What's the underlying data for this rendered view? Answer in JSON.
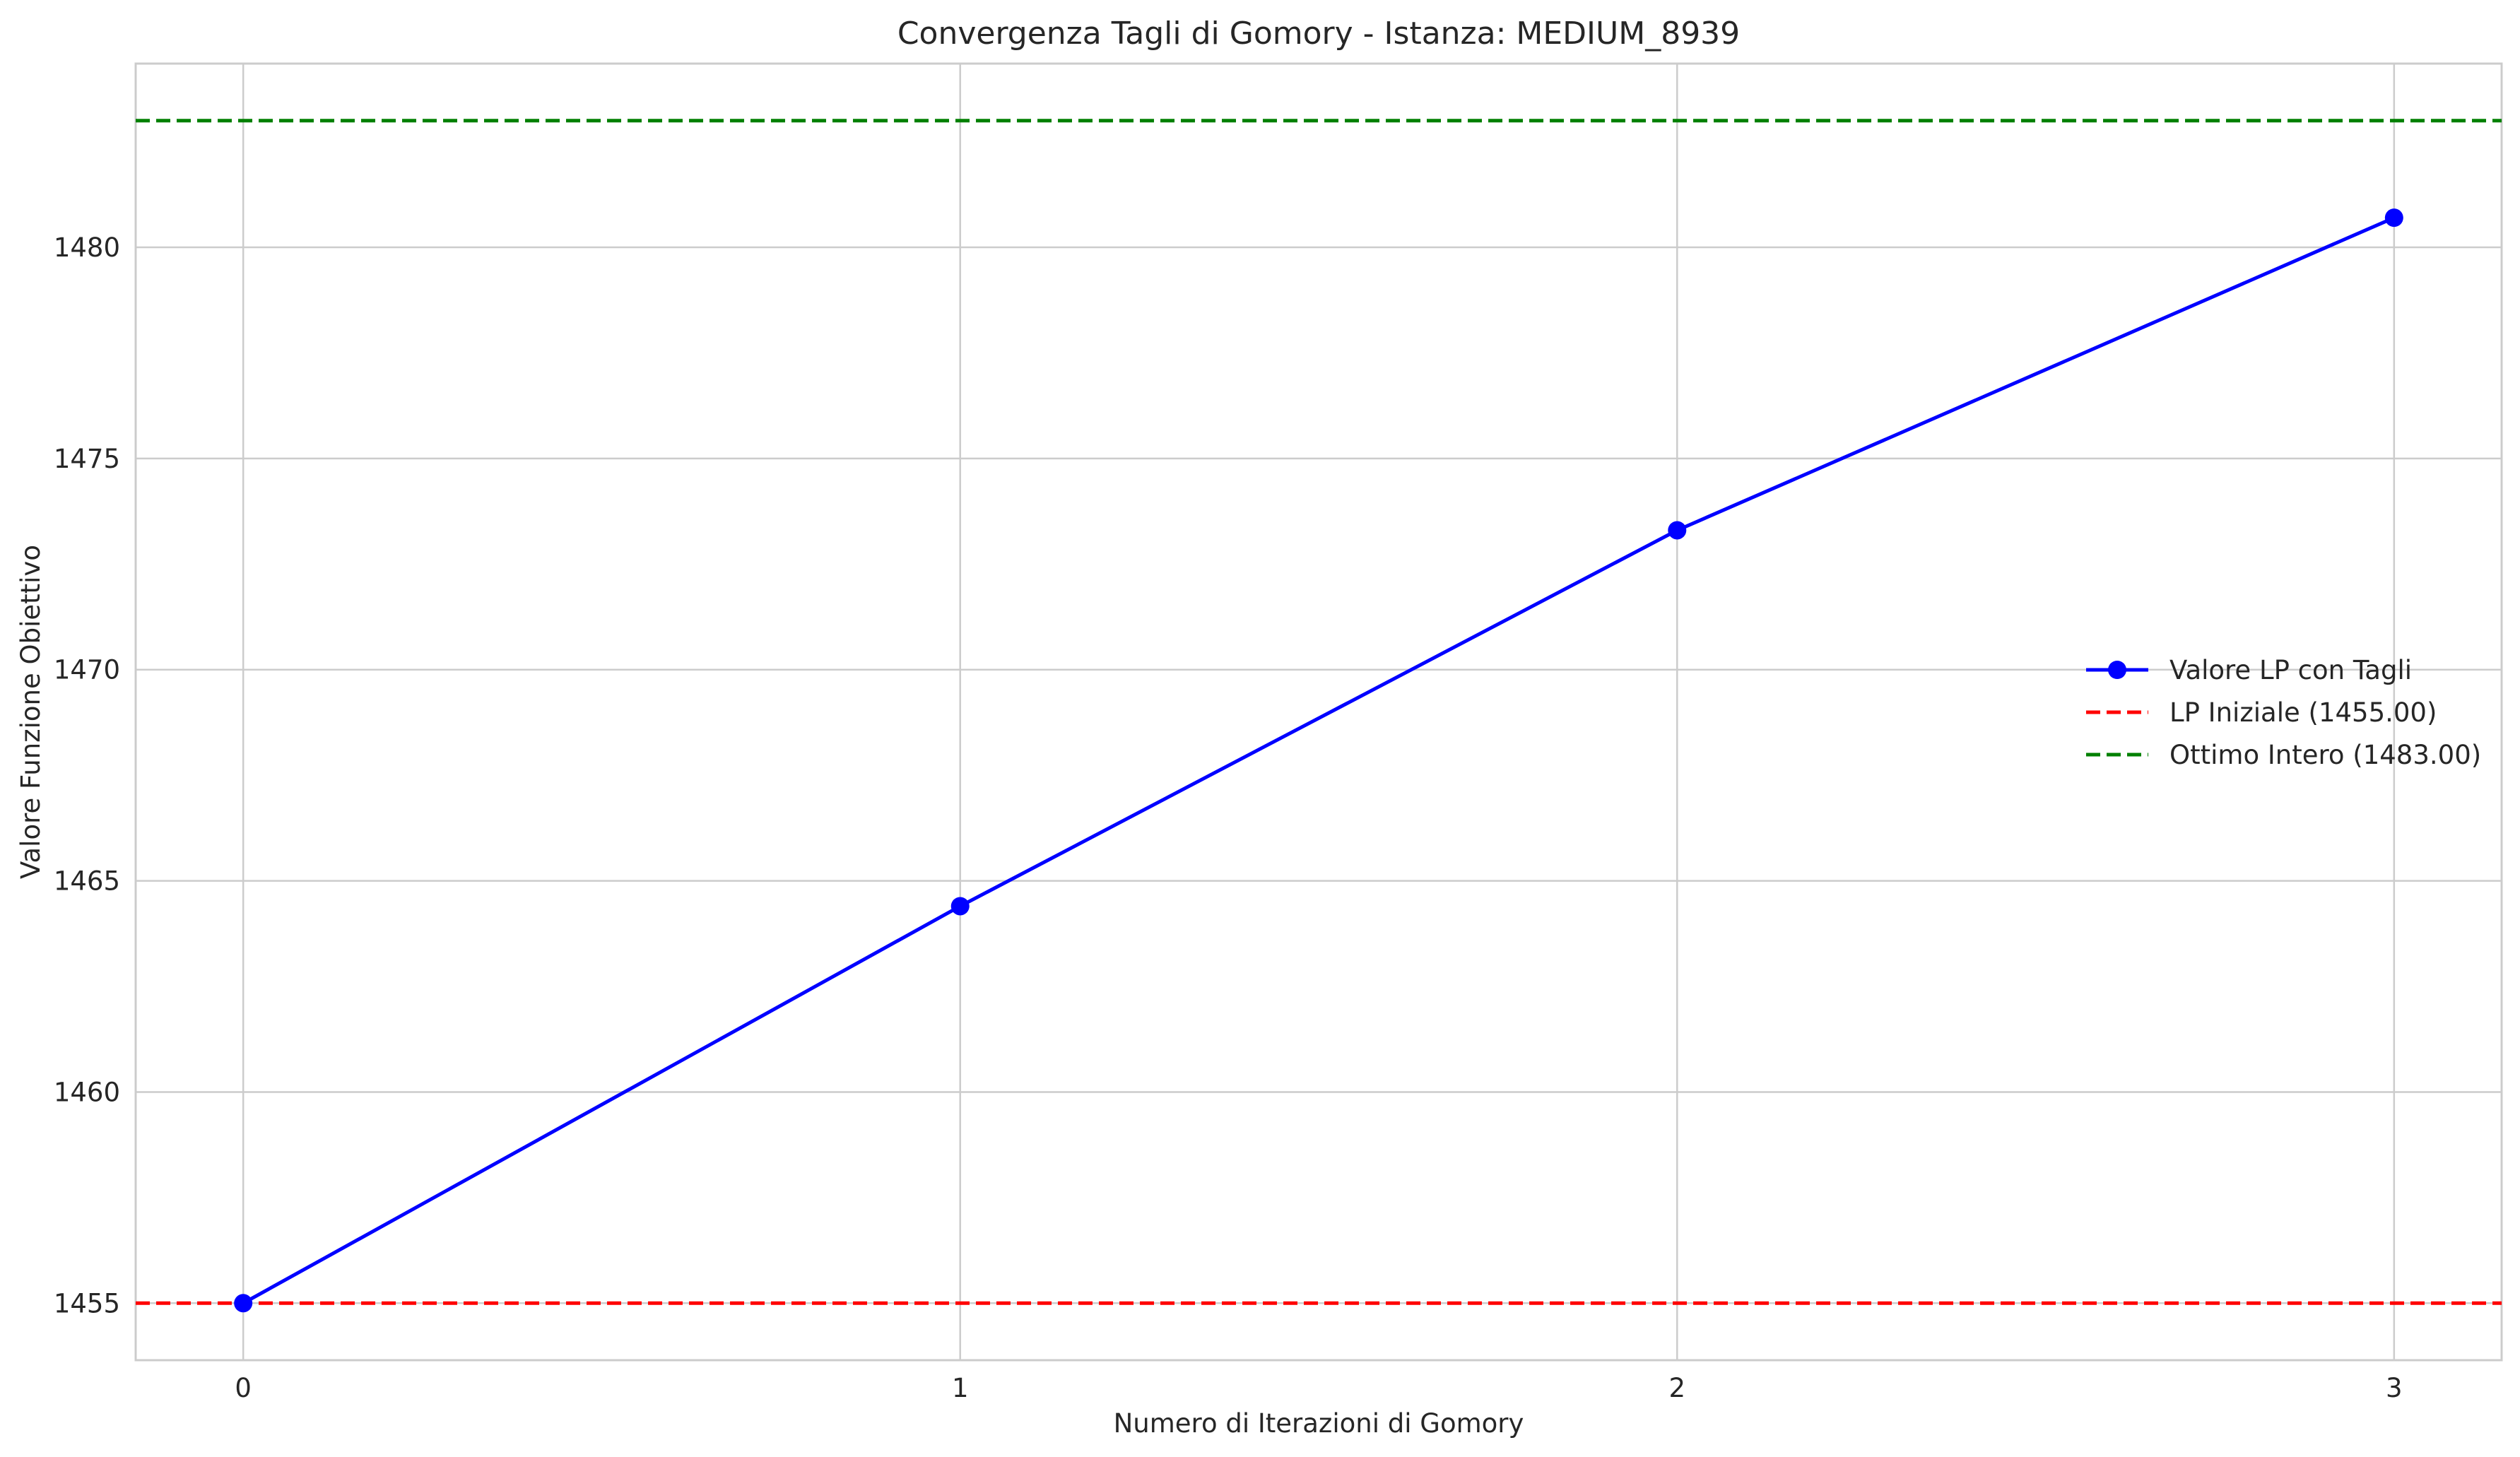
{
  "chart_data": {
    "type": "line",
    "title": "Convergenza Tagli di Gomory - Istanza: MEDIUM_8939",
    "xlabel": "Numero di Iterazioni di Gomory",
    "ylabel": "Valore Funzione Obiettivo",
    "x": [
      0,
      1,
      2,
      3
    ],
    "xticks": [
      "0",
      "1",
      "2",
      "3"
    ],
    "yticks": [
      "1455",
      "1460",
      "1465",
      "1470",
      "1475",
      "1480"
    ],
    "xlim": [
      -0.15,
      3.15
    ],
    "ylim": [
      1453.65,
      1484.35
    ],
    "grid": true,
    "legend_position": "center-right",
    "series": [
      {
        "name": "Valore LP con Tagli",
        "values": [
          1455.0,
          1464.4,
          1473.3,
          1480.7
        ],
        "color": "#0000ff",
        "style": "solid",
        "marker": "circle"
      }
    ],
    "hlines": [
      {
        "name": "LP Iniziale (1455.00)",
        "value": 1455.0,
        "color": "#ff0000",
        "style": "dashed"
      },
      {
        "name": "Ottimo Intero (1483.00)",
        "value": 1483.0,
        "color": "#008000",
        "style": "dashed"
      }
    ]
  }
}
